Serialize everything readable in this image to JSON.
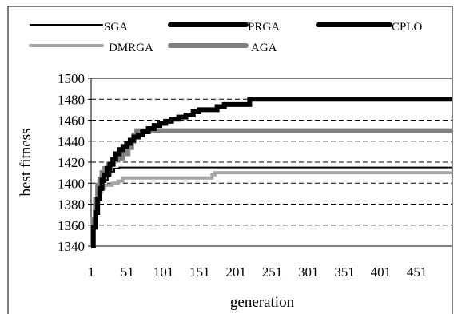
{
  "chart_data": {
    "type": "line",
    "title": "",
    "xlabel": "generation",
    "ylabel": "best fitness",
    "xlim": [
      1,
      500
    ],
    "ylim": [
      1340,
      1500
    ],
    "x_ticks": [
      "1",
      "51",
      "101",
      "151",
      "201",
      "251",
      "301",
      "351",
      "401",
      "451"
    ],
    "x_tick_values": [
      1,
      51,
      101,
      151,
      201,
      251,
      301,
      351,
      401,
      451
    ],
    "y_ticks": [
      "1340",
      "1360",
      "1380",
      "1400",
      "1420",
      "1440",
      "1460",
      "1480",
      "1500"
    ],
    "y_tick_values": [
      1340,
      1360,
      1380,
      1400,
      1420,
      1440,
      1460,
      1480,
      1500
    ],
    "grid": "horizontal dashed",
    "legend_position": "top",
    "series": [
      {
        "name": "SGA",
        "color": "#000000",
        "style": "thin",
        "points": [
          [
            1,
            1340
          ],
          [
            3,
            1360
          ],
          [
            5,
            1375
          ],
          [
            8,
            1385
          ],
          [
            10,
            1393
          ],
          [
            13,
            1398
          ],
          [
            16,
            1401
          ],
          [
            20,
            1403
          ],
          [
            24,
            1407
          ],
          [
            28,
            1411
          ],
          [
            33,
            1414
          ],
          [
            40,
            1415
          ],
          [
            500,
            1415
          ]
        ]
      },
      {
        "name": "PRGA",
        "color": "#000000",
        "style": "thick",
        "points": [
          [
            1,
            1340
          ],
          [
            4,
            1358
          ],
          [
            7,
            1372
          ],
          [
            10,
            1385
          ],
          [
            13,
            1395
          ],
          [
            16,
            1403
          ],
          [
            19,
            1408
          ],
          [
            23,
            1414
          ],
          [
            27,
            1418
          ],
          [
            31,
            1423
          ],
          [
            35,
            1428
          ],
          [
            40,
            1432
          ],
          [
            45,
            1435
          ],
          [
            50,
            1438
          ],
          [
            55,
            1441
          ],
          [
            60,
            1444
          ],
          [
            66,
            1446
          ],
          [
            72,
            1449
          ],
          [
            80,
            1452
          ],
          [
            88,
            1455
          ],
          [
            96,
            1457
          ],
          [
            104,
            1459
          ],
          [
            112,
            1461
          ],
          [
            122,
            1463
          ],
          [
            132,
            1465
          ],
          [
            142,
            1468
          ],
          [
            150,
            1470
          ],
          [
            170,
            1470
          ],
          [
            175,
            1473
          ],
          [
            185,
            1475
          ],
          [
            215,
            1475
          ],
          [
            220,
            1480
          ],
          [
            500,
            1480
          ]
        ]
      },
      {
        "name": "CPLO",
        "color": "#000000",
        "style": "thick-short",
        "points": []
      },
      {
        "name": "DMRGA",
        "color": "#a6a6a6",
        "style": "medium",
        "points": [
          [
            1,
            1340
          ],
          [
            4,
            1362
          ],
          [
            7,
            1380
          ],
          [
            11,
            1391
          ],
          [
            15,
            1395
          ],
          [
            20,
            1398
          ],
          [
            30,
            1400
          ],
          [
            38,
            1402
          ],
          [
            45,
            1405
          ],
          [
            160,
            1405
          ],
          [
            168,
            1408
          ],
          [
            172,
            1410
          ],
          [
            500,
            1410
          ]
        ]
      },
      {
        "name": "AGA",
        "color": "#808080",
        "style": "thick",
        "points": [
          [
            1,
            1340
          ],
          [
            4,
            1365
          ],
          [
            7,
            1385
          ],
          [
            10,
            1398
          ],
          [
            13,
            1404
          ],
          [
            16,
            1410
          ],
          [
            20,
            1414
          ],
          [
            25,
            1418
          ],
          [
            32,
            1422
          ],
          [
            38,
            1424
          ],
          [
            45,
            1428
          ],
          [
            52,
            1434
          ],
          [
            57,
            1440
          ],
          [
            60,
            1446
          ],
          [
            64,
            1450
          ],
          [
            500,
            1450
          ]
        ]
      }
    ]
  }
}
